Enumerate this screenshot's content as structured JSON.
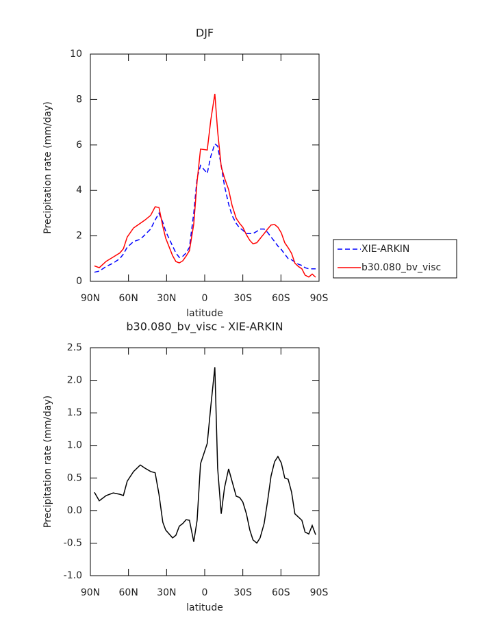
{
  "chart_data": [
    {
      "type": "line",
      "title": "DJF",
      "x_label": "latitude",
      "y_label": "Precipitation rate (mm/day)",
      "x": [
        -86.8,
        -83,
        -77.6,
        -72,
        -66.8,
        -64,
        -61,
        -56,
        -50.7,
        -47,
        -42.6,
        -39,
        -36,
        -33,
        -30.7,
        -25.3,
        -22.7,
        -20,
        -17.3,
        -14.6,
        -12,
        -8.6,
        -6,
        -3.3,
        2,
        4.8,
        8,
        10.2,
        13,
        15.6,
        18.8,
        21.5,
        24.8,
        27.5,
        30,
        32.8,
        35.5,
        38,
        41,
        43.6,
        46.8,
        49.5,
        52.2,
        55,
        57.6,
        60.3,
        63,
        65.7,
        68.4,
        71,
        73.8,
        76.5,
        79,
        81.9,
        84.6,
        87.3
      ],
      "series": [
        {
          "name": "XIE-ARKIN",
          "color": "#0000ff",
          "dash": true,
          "values": [
            0.4,
            0.45,
            0.65,
            0.8,
            1.0,
            1.2,
            1.5,
            1.75,
            1.85,
            2.05,
            2.3,
            2.7,
            3.0,
            2.6,
            2.2,
            1.55,
            1.25,
            1.05,
            1.1,
            1.25,
            1.5,
            3.0,
            4.55,
            5.1,
            4.75,
            5.5,
            6.05,
            5.95,
            5.1,
            4.2,
            3.4,
            2.9,
            2.55,
            2.35,
            2.25,
            2.1,
            2.1,
            2.1,
            2.2,
            2.3,
            2.3,
            2.15,
            1.95,
            1.75,
            1.55,
            1.4,
            1.2,
            1.0,
            0.95,
            0.85,
            0.75,
            0.7,
            0.6,
            0.55,
            0.55,
            0.55
          ]
        },
        {
          "name": "b30.080_bv_visc",
          "color": "#ff0000",
          "dash": false,
          "values": [
            0.68,
            0.6,
            0.88,
            1.07,
            1.25,
            1.43,
            1.95,
            2.35,
            2.55,
            2.7,
            2.9,
            3.28,
            3.25,
            2.42,
            1.9,
            1.13,
            0.87,
            0.81,
            0.9,
            1.11,
            1.35,
            2.52,
            4.4,
            5.82,
            5.78,
            7.1,
            8.25,
            6.6,
            5.05,
            4.55,
            4.04,
            3.35,
            2.77,
            2.55,
            2.38,
            2.05,
            1.8,
            1.65,
            1.7,
            1.88,
            2.1,
            2.3,
            2.48,
            2.5,
            2.38,
            2.13,
            1.7,
            1.48,
            1.23,
            0.8,
            0.65,
            0.55,
            0.27,
            0.19,
            0.32,
            0.18
          ]
        }
      ],
      "xlim": [
        -90,
        90
      ],
      "xticks": [
        {
          "value": -90,
          "label": "90N"
        },
        {
          "value": -60,
          "label": "60N"
        },
        {
          "value": -30,
          "label": "30N"
        },
        0,
        {
          "value": 30,
          "label": "30S"
        },
        {
          "value": 60,
          "label": "60S"
        },
        {
          "value": 90,
          "label": "90S"
        }
      ],
      "ylim": [
        0,
        10
      ],
      "yticks": [
        0,
        2,
        4,
        6,
        8,
        10
      ],
      "legend": "right"
    },
    {
      "type": "line",
      "title": "b30.080_bv_visc - XIE-ARKIN",
      "x_label": "latitude",
      "y_label": "Precipitation rate (mm/day)",
      "x": [
        -86.8,
        -83,
        -77.6,
        -72,
        -66.8,
        -64,
        -61,
        -56,
        -50.7,
        -47,
        -42.6,
        -39,
        -36,
        -33,
        -30.7,
        -25.3,
        -22.7,
        -20,
        -17.3,
        -14.6,
        -12,
        -8.6,
        -6,
        -3.3,
        2,
        4.8,
        8,
        10.2,
        13,
        15.6,
        18.8,
        21.5,
        24.8,
        27.5,
        30,
        32.8,
        35.5,
        38,
        41,
        43.6,
        46.8,
        49.5,
        52.2,
        55,
        57.6,
        60.3,
        63,
        65.7,
        68.4,
        71,
        73.8,
        76.5,
        79,
        81.9,
        84.6,
        87.3
      ],
      "values": [
        0.28,
        0.15,
        0.23,
        0.27,
        0.25,
        0.23,
        0.45,
        0.6,
        0.7,
        0.65,
        0.6,
        0.58,
        0.25,
        -0.18,
        -0.3,
        -0.42,
        -0.38,
        -0.24,
        -0.2,
        -0.14,
        -0.15,
        -0.48,
        -0.15,
        0.72,
        1.03,
        1.6,
        2.2,
        0.65,
        -0.05,
        0.35,
        0.64,
        0.45,
        0.22,
        0.2,
        0.13,
        -0.05,
        -0.3,
        -0.45,
        -0.5,
        -0.42,
        -0.2,
        0.15,
        0.53,
        0.75,
        0.83,
        0.73,
        0.5,
        0.48,
        0.28,
        -0.05,
        -0.1,
        -0.15,
        -0.33,
        -0.36,
        -0.23,
        -0.37
      ],
      "color": "#000000",
      "xlim": [
        -90,
        90
      ],
      "xticks": [
        {
          "value": -90,
          "label": "90N"
        },
        {
          "value": -60,
          "label": "60N"
        },
        {
          "value": -30,
          "label": "30N"
        },
        0,
        {
          "value": 30,
          "label": "30S"
        },
        {
          "value": 60,
          "label": "60S"
        },
        {
          "value": 90,
          "label": "90S"
        }
      ],
      "ylim": [
        -1,
        2.5
      ],
      "yticks": [
        {
          "value": -1,
          "label": "-1.0"
        },
        -0.5,
        {
          "value": 0,
          "label": "0.0"
        },
        0.5,
        {
          "value": 1,
          "label": "1.0"
        },
        1.5,
        {
          "value": 2,
          "label": "2.0"
        },
        2.5
      ]
    }
  ]
}
